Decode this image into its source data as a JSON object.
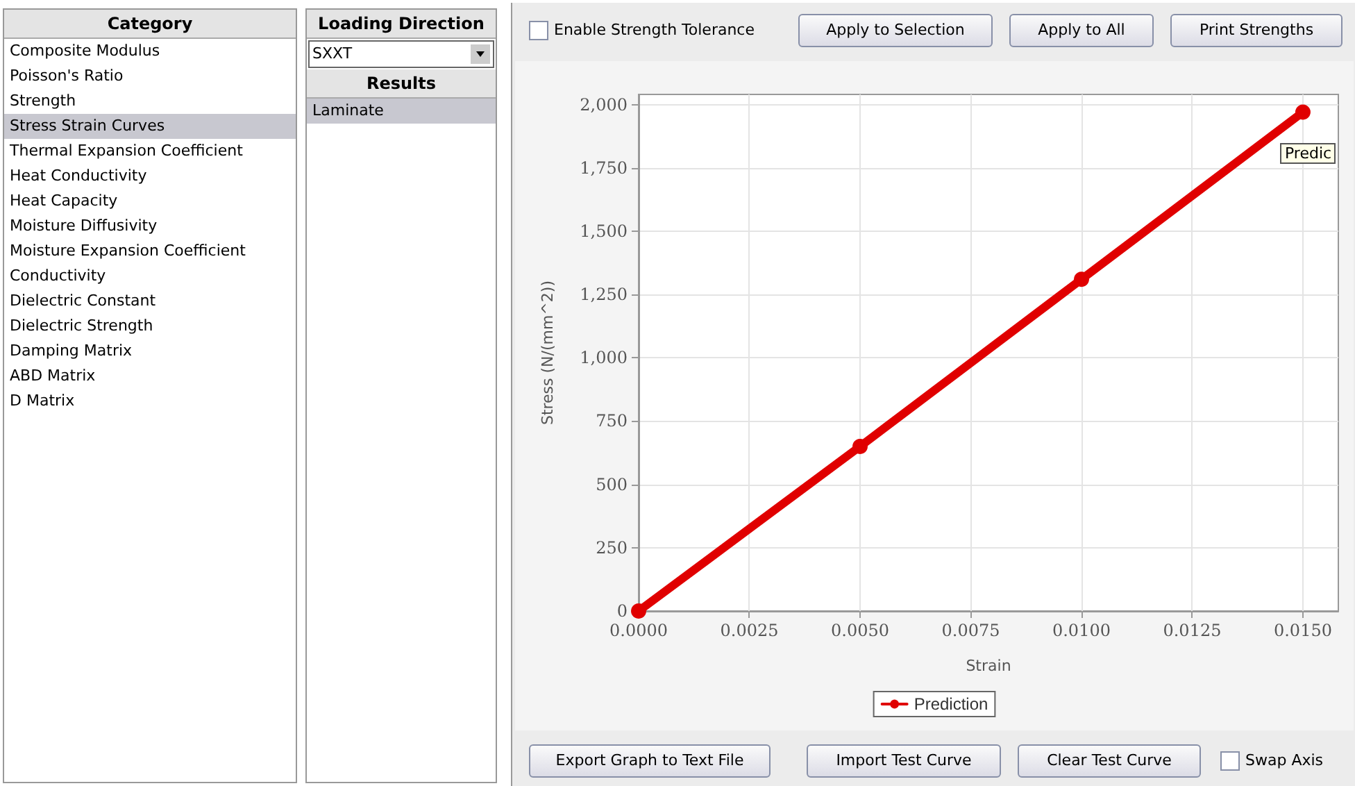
{
  "chart_data": [
    {
      "type": "other",
      "title": "Category",
      "annotations": [
        "Composite Modulus",
        "Poisson's Ratio",
        "Strength",
        "Stress Strain Curves",
        "Thermal Expansion Coefficient",
        "Heat Conductivity",
        "Heat Capacity",
        "Moisture Diffusivity",
        "Moisture Expansion Coefficient",
        "Conductivity",
        "Dielectric Constant",
        "Dielectric Strength",
        "Damping Matrix",
        "ABD Matrix",
        "D Matrix"
      ]
    },
    {
      "type": "other",
      "title": "Loading Direction",
      "annotations": [
        "SXXT",
        "Results",
        "Laminate"
      ]
    },
    {
      "type": "line",
      "xlabel": "Strain",
      "ylabel": "Stress (N/(mm^2))",
      "x": [
        0,
        0.005,
        0.01,
        0.015
      ],
      "series": [
        {
          "name": "Prediction",
          "color": "#e00000",
          "values": [
            0,
            650,
            1310,
            1970
          ]
        }
      ],
      "xlim": [
        0,
        0.0158
      ],
      "xticks": [
        {
          "value": 0,
          "label": "0.0000"
        },
        {
          "value": 0.0025,
          "label": "0.0025"
        },
        {
          "value": 0.005,
          "label": "0.0050"
        },
        {
          "value": 0.0075,
          "label": "0.0075"
        },
        {
          "value": 0.01,
          "label": "0.0100"
        },
        {
          "value": 0.0125,
          "label": "0.0125"
        },
        {
          "value": 0.015,
          "label": "0.0150"
        }
      ],
      "ylim": [
        0,
        2040
      ],
      "yticks": [
        0,
        250,
        500,
        750,
        {
          "value": 1000,
          "label": "1,000"
        },
        {
          "value": 1250,
          "label": "1,250"
        },
        {
          "value": 1500,
          "label": "1,500"
        },
        {
          "value": 1750,
          "label": "1,750"
        },
        {
          "value": 2000,
          "label": "2,000"
        }
      ],
      "grid": true,
      "legend": "bottom",
      "marker": "circle",
      "line_style": "solid",
      "annotations": [
        "Enable Strength Tolerance",
        "Apply to Selection",
        "Apply to All",
        "Print Strengths",
        "Export Graph to Text File",
        "Import Test Curve",
        "Clear Test Curve",
        "Swap Axis",
        {
          "text": "Predic",
          "x": 0.015,
          "y": 1970
        }
      ]
    }
  ]
}
